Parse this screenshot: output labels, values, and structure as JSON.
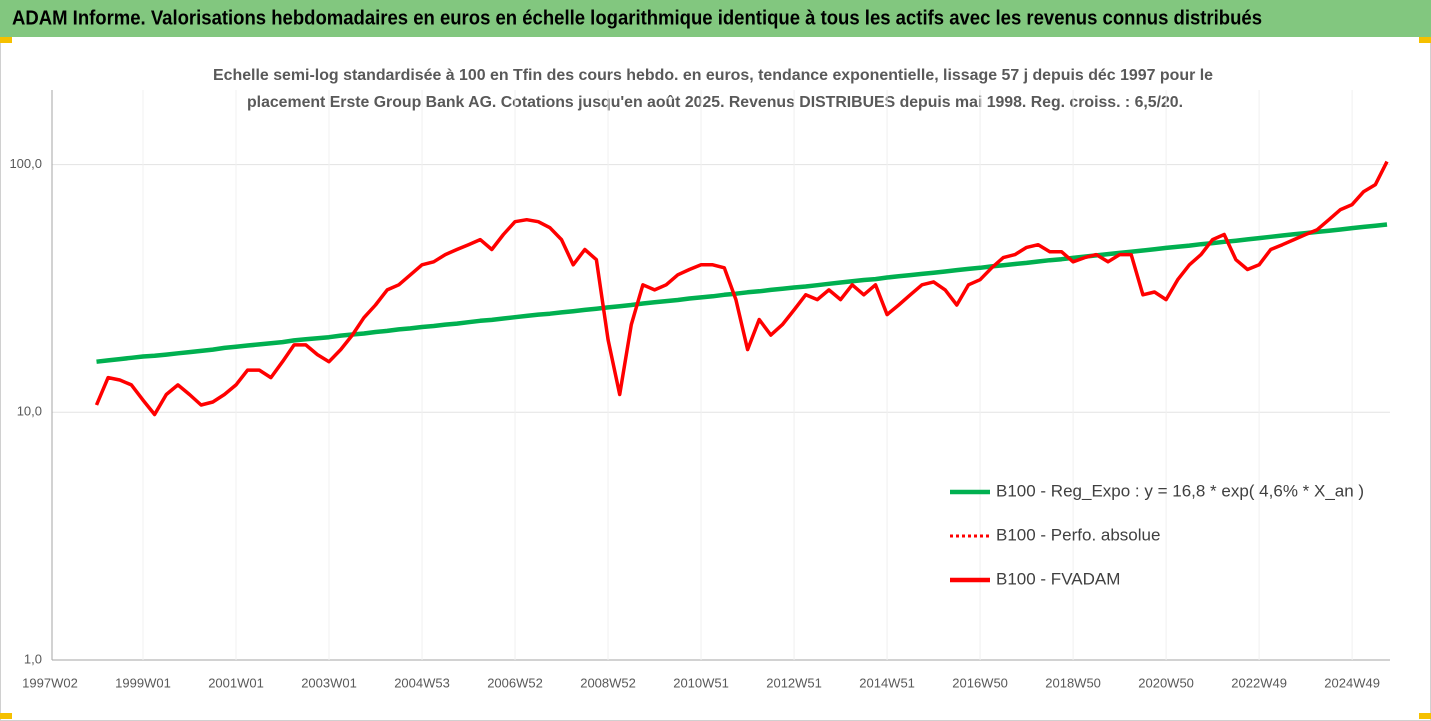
{
  "chart_data": {
    "type": "line",
    "title": "ADAM Informe. Valorisations hebdomadaires en euros en échelle logarithmique identique à tous les actifs avec les revenus connus distribués",
    "subtitle": [
      "Echelle semi-log standardisée à 100 en Tfin des cours hebdo. en euros, tendance exponentielle, lissage 57 j depuis déc 1997 pour le",
      "placement Erste Group Bank AG. Cotations jusqu'en août 2025. Revenus DISTRIBUES depuis mai 1998. Reg. croiss. : 6,5/20."
    ],
    "log_scale": true,
    "ylim": [
      1,
      200
    ],
    "yticks": [
      {
        "value": 1,
        "label": "1,0"
      },
      {
        "value": 10,
        "label": "10,0"
      },
      {
        "value": 100,
        "label": "100,0"
      }
    ],
    "grid": true,
    "legend": "right",
    "categories": [
      "1997W02",
      null,
      null,
      null,
      null,
      null,
      null,
      null,
      "1999W01",
      null,
      null,
      null,
      null,
      null,
      null,
      null,
      "2001W01",
      null,
      null,
      null,
      null,
      null,
      null,
      null,
      "2003W01",
      null,
      null,
      null,
      null,
      null,
      null,
      null,
      "2004W53",
      null,
      null,
      null,
      null,
      null,
      null,
      null,
      "2006W52",
      null,
      null,
      null,
      null,
      null,
      null,
      null,
      "2008W52",
      null,
      null,
      null,
      null,
      null,
      null,
      null,
      "2010W51",
      null,
      null,
      null,
      null,
      null,
      null,
      null,
      "2012W51",
      null,
      null,
      null,
      null,
      null,
      null,
      null,
      "2014W51",
      null,
      null,
      null,
      null,
      null,
      null,
      null,
      "2016W50",
      null,
      null,
      null,
      null,
      null,
      null,
      null,
      "2018W50",
      null,
      null,
      null,
      null,
      null,
      null,
      null,
      "2020W50",
      null,
      null,
      null,
      null,
      null,
      null,
      null,
      "2022W49",
      null,
      null,
      null,
      null,
      null,
      null,
      null,
      "2024W49",
      null,
      null,
      null
    ],
    "series": [
      {
        "name": "B100 - Reg_Expo : y = 16,8 * exp( 4,6% *  X_an )",
        "color": "#00b050",
        "style": "solid",
        "values": [
          null,
          null,
          null,
          null,
          16.0,
          16.2,
          16.4,
          16.6,
          16.8,
          16.9,
          17.1,
          17.3,
          17.5,
          17.7,
          17.9,
          18.2,
          18.4,
          18.6,
          18.8,
          19.0,
          19.2,
          19.5,
          19.7,
          19.9,
          20.1,
          20.4,
          20.6,
          20.8,
          21.1,
          21.3,
          21.6,
          21.8,
          22.1,
          22.3,
          22.6,
          22.8,
          23.1,
          23.4,
          23.6,
          23.9,
          24.2,
          24.5,
          24.8,
          25.0,
          25.3,
          25.6,
          25.9,
          26.2,
          26.5,
          26.8,
          27.1,
          27.5,
          27.8,
          28.1,
          28.4,
          28.8,
          29.1,
          29.4,
          29.8,
          30.1,
          30.5,
          30.8,
          31.2,
          31.5,
          31.9,
          32.2,
          32.6,
          33.0,
          33.4,
          33.8,
          34.2,
          34.5,
          35.0,
          35.4,
          35.8,
          36.2,
          36.6,
          37.0,
          37.5,
          37.9,
          38.3,
          38.8,
          39.2,
          39.7,
          40.1,
          40.6,
          41.1,
          41.5,
          42.0,
          42.5,
          43.0,
          43.5,
          44.0,
          44.5,
          45.0,
          45.5,
          46.1,
          46.6,
          47.1,
          47.7,
          48.2,
          48.8,
          49.3,
          49.9,
          50.5,
          51.1,
          51.7,
          52.3,
          52.9,
          53.5,
          54.1,
          54.7,
          55.4,
          56.0,
          56.6,
          57.3
        ]
      },
      {
        "name": "B100 - Perfo. absolue",
        "color": "#ff0000",
        "style": "dotted"
      },
      {
        "name": "B100 - FVADAM",
        "color": "#ff0000",
        "style": "solid",
        "values": [
          null,
          null,
          null,
          null,
          10.7,
          13.8,
          13.5,
          12.9,
          11.2,
          9.8,
          11.8,
          12.9,
          11.8,
          10.7,
          11.0,
          11.8,
          12.9,
          14.8,
          14.8,
          13.8,
          16.0,
          18.7,
          18.7,
          17.1,
          16.0,
          17.9,
          20.5,
          24.1,
          27.1,
          31.2,
          32.7,
          35.9,
          39.4,
          40.5,
          43.3,
          45.4,
          47.5,
          49.8,
          45.4,
          52.2,
          58.8,
          59.9,
          58.8,
          55.6,
          49.8,
          39.4,
          45.4,
          41.3,
          19.6,
          11.8,
          22.6,
          32.7,
          31.2,
          32.7,
          35.9,
          37.7,
          39.4,
          39.4,
          38.3,
          28.5,
          17.9,
          23.7,
          20.5,
          22.6,
          25.9,
          29.8,
          28.5,
          31.2,
          28.5,
          32.7,
          29.8,
          32.7,
          24.8,
          27.1,
          29.8,
          32.7,
          33.6,
          31.2,
          27.1,
          32.7,
          34.3,
          38.3,
          42.1,
          43.3,
          46.3,
          47.5,
          44.5,
          44.5,
          40.5,
          42.1,
          43.3,
          40.5,
          43.3,
          43.3,
          29.8,
          30.6,
          28.5,
          34.3,
          39.4,
          43.3,
          49.8,
          52.2,
          41.3,
          37.7,
          39.4,
          45.4,
          47.5,
          49.8,
          52.2,
          54.6,
          59.9,
          65.8,
          68.9,
          77.8,
          83.0,
          102.8
        ]
      }
    ]
  }
}
